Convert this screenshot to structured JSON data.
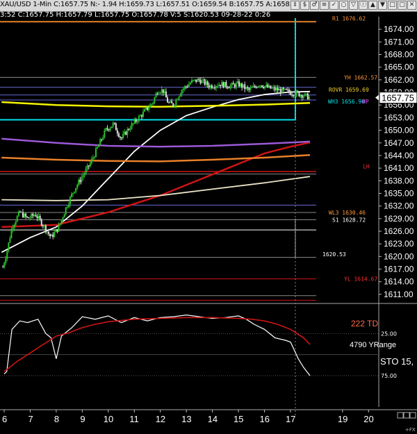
{
  "title_bar": "XAU/USD 1-Min C:1657.75 N:- 1.94 H:1659.73 L:1657.51 O:1659.54 B:1657.75 A:1658.",
  "info_bar": "3:52 C:1657.75 H:1657.79 L:1657.75 O:1657.78 V:5 S:1620.53 09-28-22 0:26",
  "toolbar_buttons": [
    "‡",
    "$",
    "♂",
    "≡",
    "✓",
    "○",
    "▽",
    "ⓘ",
    "▲",
    "▼",
    "□",
    "▢",
    "✕"
  ],
  "colors": {
    "background": "#000000",
    "candle_up": "#2bbf2b",
    "candle_down": "#d8d8d8",
    "ma_white": "#ffffff",
    "ma_red": "#d01414",
    "ma_purple": "#9b59d6",
    "ma_orange": "#e8802a",
    "yellow": "#f5f500",
    "cyan": "#00e5ee",
    "sto_line": "#ffffff",
    "sto_signal": "#d01414",
    "label_orange": "#ff9a3c",
    "label_yellow": "#f5d028",
    "label_cyan": "#00e5ee",
    "label_magenta": "#ff40ff",
    "label_red": "#ff3030"
  },
  "chart_data": [
    {
      "type": "candlestick",
      "symbol": "XAU/USD",
      "interval": "1-Min",
      "ylim": [
        1609,
        1677
      ],
      "y_ticks": [
        1674,
        1671,
        1668,
        1665,
        1662,
        1659,
        1656,
        1653,
        1650,
        1647,
        1644,
        1641,
        1638,
        1635,
        1632,
        1629,
        1626,
        1623,
        1620,
        1617,
        1614,
        1611
      ],
      "y_tick_labels": [
        "1674.00",
        "1671.00",
        "1668.00",
        "1665.00",
        "1662.00",
        "1659.00",
        "1656.00",
        "1653.00",
        "1650.00",
        "1647.00",
        "1644.00",
        "1641.00",
        "1638.00",
        "1635.00",
        "1632.00",
        "1629.00",
        "1626.00",
        "1623.00",
        "1620.00",
        "1617.00",
        "1614.00",
        "1611.00"
      ],
      "x_ticks": [
        6,
        7,
        8,
        9,
        10,
        11,
        12,
        13,
        14,
        15,
        16,
        17,
        19,
        20
      ],
      "x_tick_labels": [
        "6",
        "7",
        "8",
        "9",
        "10",
        "11",
        "12",
        "13",
        "14",
        "15",
        "16",
        "17",
        "19",
        "20"
      ],
      "last_price": 1657.75,
      "last_price_label": "1657.75",
      "price_path": [
        {
          "x": 5.95,
          "y": 1617.5
        },
        {
          "x": 6.1,
          "y": 1621
        },
        {
          "x": 6.3,
          "y": 1627
        },
        {
          "x": 6.6,
          "y": 1630.5
        },
        {
          "x": 6.9,
          "y": 1629
        },
        {
          "x": 7.2,
          "y": 1630
        },
        {
          "x": 7.5,
          "y": 1627.5
        },
        {
          "x": 7.8,
          "y": 1624.5
        },
        {
          "x": 8.1,
          "y": 1627
        },
        {
          "x": 8.4,
          "y": 1632
        },
        {
          "x": 8.7,
          "y": 1636
        },
        {
          "x": 9.0,
          "y": 1639
        },
        {
          "x": 9.3,
          "y": 1642
        },
        {
          "x": 9.6,
          "y": 1646
        },
        {
          "x": 9.9,
          "y": 1650
        },
        {
          "x": 10.2,
          "y": 1651.5
        },
        {
          "x": 10.5,
          "y": 1648
        },
        {
          "x": 10.8,
          "y": 1650.5
        },
        {
          "x": 11.1,
          "y": 1652.5
        },
        {
          "x": 11.4,
          "y": 1654.5
        },
        {
          "x": 11.7,
          "y": 1656.5
        },
        {
          "x": 11.9,
          "y": 1659.5
        },
        {
          "x": 12.1,
          "y": 1659.5
        },
        {
          "x": 12.3,
          "y": 1656.5
        },
        {
          "x": 12.5,
          "y": 1656
        },
        {
          "x": 12.8,
          "y": 1659.5
        },
        {
          "x": 13.2,
          "y": 1661.5
        },
        {
          "x": 13.5,
          "y": 1662
        },
        {
          "x": 13.9,
          "y": 1660.5
        },
        {
          "x": 14.3,
          "y": 1661
        },
        {
          "x": 14.7,
          "y": 1660.5
        },
        {
          "x": 15.0,
          "y": 1661
        },
        {
          "x": 15.4,
          "y": 1659.5
        },
        {
          "x": 15.8,
          "y": 1661
        },
        {
          "x": 16.2,
          "y": 1660
        },
        {
          "x": 16.6,
          "y": 1659.5
        },
        {
          "x": 17.0,
          "y": 1659
        },
        {
          "x": 17.4,
          "y": 1658.5
        },
        {
          "x": 17.75,
          "y": 1657.8
        }
      ],
      "moving_averages": [
        {
          "color": "white",
          "points": [
            {
              "x": 5.9,
              "y": 1621
            },
            {
              "x": 7.0,
              "y": 1624.5
            },
            {
              "x": 8.0,
              "y": 1627
            },
            {
              "x": 9.0,
              "y": 1632
            },
            {
              "x": 10.0,
              "y": 1638.5
            },
            {
              "x": 11.0,
              "y": 1645
            },
            {
              "x": 12.0,
              "y": 1650
            },
            {
              "x": 13.0,
              "y": 1653.5
            },
            {
              "x": 14.0,
              "y": 1655.5
            },
            {
              "x": 15.0,
              "y": 1657.3
            },
            {
              "x": 16.0,
              "y": 1658.5
            },
            {
              "x": 17.0,
              "y": 1659.1
            },
            {
              "x": 17.75,
              "y": 1659.2
            }
          ]
        },
        {
          "color": "red",
          "points": [
            {
              "x": 5.9,
              "y": 1627
            },
            {
              "x": 8.0,
              "y": 1627.5
            },
            {
              "x": 10.0,
              "y": 1630.5
            },
            {
              "x": 12.0,
              "y": 1634.5
            },
            {
              "x": 14.0,
              "y": 1639.5
            },
            {
              "x": 16.0,
              "y": 1644.5
            },
            {
              "x": 17.0,
              "y": 1646.1
            },
            {
              "x": 17.75,
              "y": 1647.1
            }
          ]
        },
        {
          "color": "purple",
          "points": [
            {
              "x": 5.9,
              "y": 1648
            },
            {
              "x": 8.0,
              "y": 1647
            },
            {
              "x": 10.0,
              "y": 1646.3
            },
            {
              "x": 12.0,
              "y": 1646.1
            },
            {
              "x": 14.0,
              "y": 1646.3
            },
            {
              "x": 16.0,
              "y": 1646.8
            },
            {
              "x": 17.75,
              "y": 1647.3
            }
          ]
        },
        {
          "color": "orange",
          "points": [
            {
              "x": 5.9,
              "y": 1643.5
            },
            {
              "x": 8.0,
              "y": 1643
            },
            {
              "x": 10.0,
              "y": 1642.7
            },
            {
              "x": 12.0,
              "y": 1642.6
            },
            {
              "x": 14.0,
              "y": 1643
            },
            {
              "x": 16.0,
              "y": 1643.5
            },
            {
              "x": 17.75,
              "y": 1644.1
            }
          ]
        },
        {
          "color": "cream",
          "points": [
            {
              "x": 5.9,
              "y": 1633.5
            },
            {
              "x": 8.0,
              "y": 1633.3
            },
            {
              "x": 10.0,
              "y": 1633.5
            },
            {
              "x": 12.0,
              "y": 1634.5
            },
            {
              "x": 14.0,
              "y": 1636
            },
            {
              "x": 16.0,
              "y": 1637.5
            },
            {
              "x": 17.75,
              "y": 1639
            }
          ]
        },
        {
          "color": "yellow",
          "points": [
            {
              "x": 5.9,
              "y": 1656.7
            },
            {
              "x": 8.0,
              "y": 1656
            },
            {
              "x": 10.0,
              "y": 1655.7
            },
            {
              "x": 12.0,
              "y": 1655.6
            },
            {
              "x": 14.0,
              "y": 1655.8
            },
            {
              "x": 16.0,
              "y": 1656.1
            },
            {
              "x": 17.75,
              "y": 1656.5
            }
          ]
        }
      ],
      "levels": [
        {
          "label": "R1 1676.62",
          "value": 1676.62,
          "color": "orange"
        },
        {
          "label": "YH 1662.57",
          "value": 1662.57,
          "color": "orange"
        },
        {
          "label": "ROVR 1659.69",
          "value": 1659.69,
          "color": "yellow"
        },
        {
          "label": "WH3 1656.90",
          "value": 1656.9,
          "color": "cyan"
        },
        {
          "label": "HP",
          "value": 1656.9,
          "color": "magenta"
        },
        {
          "label": "LH",
          "value": 1640.3,
          "color": "red"
        },
        {
          "label": "WL3 1630.46",
          "value": 1630.46,
          "color": "orange"
        },
        {
          "label": "S1 1628.72",
          "value": 1628.72,
          "color": "white"
        },
        {
          "label": "1620.53",
          "value": 1620.53,
          "color": "white"
        },
        {
          "label": "YL 1614.67",
          "value": 1614.67,
          "color": "red"
        }
      ],
      "horizontal_lines": [
        {
          "value": 1675.8,
          "color": "orange"
        },
        {
          "value": 1662.57,
          "color": "gray"
        },
        {
          "value": 1660.2,
          "color": "blue"
        },
        {
          "value": 1658.4,
          "color": "blue"
        },
        {
          "value": 1657.2,
          "color": "blue"
        },
        {
          "value": 1640.2,
          "color": "red"
        },
        {
          "value": 1639.6,
          "color": "gray"
        },
        {
          "value": 1632.2,
          "color": "blue"
        },
        {
          "value": 1630.46,
          "color": "gray"
        },
        {
          "value": 1628.72,
          "color": "gray"
        },
        {
          "value": 1626.3,
          "color": "white"
        },
        {
          "value": 1619.8,
          "color": "gray"
        },
        {
          "value": 1614.67,
          "color": "red"
        },
        {
          "value": 1610.7,
          "color": "gray"
        },
        {
          "value": 1609.6,
          "color": "red"
        }
      ],
      "cyan_bracket": {
        "top": 1677,
        "bottom": 1652.5,
        "x_right": 17.0
      },
      "vertical_marker": {
        "x": 17.0,
        "from": 1629,
        "to": 1620.53
      }
    },
    {
      "type": "line",
      "indicator": "STO",
      "ylim": [
        100,
        0
      ],
      "y_ticks": [
        25,
        75
      ],
      "y_tick_labels": [
        "25.00",
        "75.00"
      ],
      "labels": [
        "222 TD",
        "4790 YRange",
        "STO 15,"
      ],
      "series": [
        {
          "name": "",
          "color": "white",
          "x": [
            6.0,
            6.1,
            6.3,
            6.6,
            6.9,
            7.3,
            7.6,
            7.8,
            8.0,
            8.2,
            8.6,
            9.0,
            9.5,
            10.0,
            10.5,
            11.0,
            11.5,
            12.0,
            12.5,
            13.0,
            13.5,
            14.0,
            14.5,
            15.0,
            15.3,
            15.6,
            16.0,
            16.4,
            16.8,
            17.0,
            17.3,
            17.5,
            17.75
          ],
          "y": [
            73,
            70,
            20,
            10,
            12,
            8,
            25,
            30,
            55,
            28,
            18,
            5,
            8,
            4,
            12,
            6,
            10,
            6,
            5,
            3,
            5,
            7,
            6,
            4,
            8,
            14,
            20,
            30,
            33,
            35,
            55,
            65,
            75
          ]
        },
        {
          "name": "",
          "color": "red",
          "x": [
            6.0,
            6.5,
            7.0,
            7.5,
            8.0,
            8.5,
            9.0,
            9.5,
            10.0,
            11.0,
            12.0,
            13.0,
            14.0,
            15.0,
            15.5,
            16.0,
            16.5,
            17.0,
            17.5,
            17.75
          ],
          "y": [
            70,
            58,
            48,
            38,
            28,
            24,
            18,
            14,
            11,
            8,
            7,
            6,
            6,
            7,
            8,
            10,
            14,
            20,
            30,
            38
          ]
        }
      ]
    }
  ],
  "footer_glyph": "+FX"
}
